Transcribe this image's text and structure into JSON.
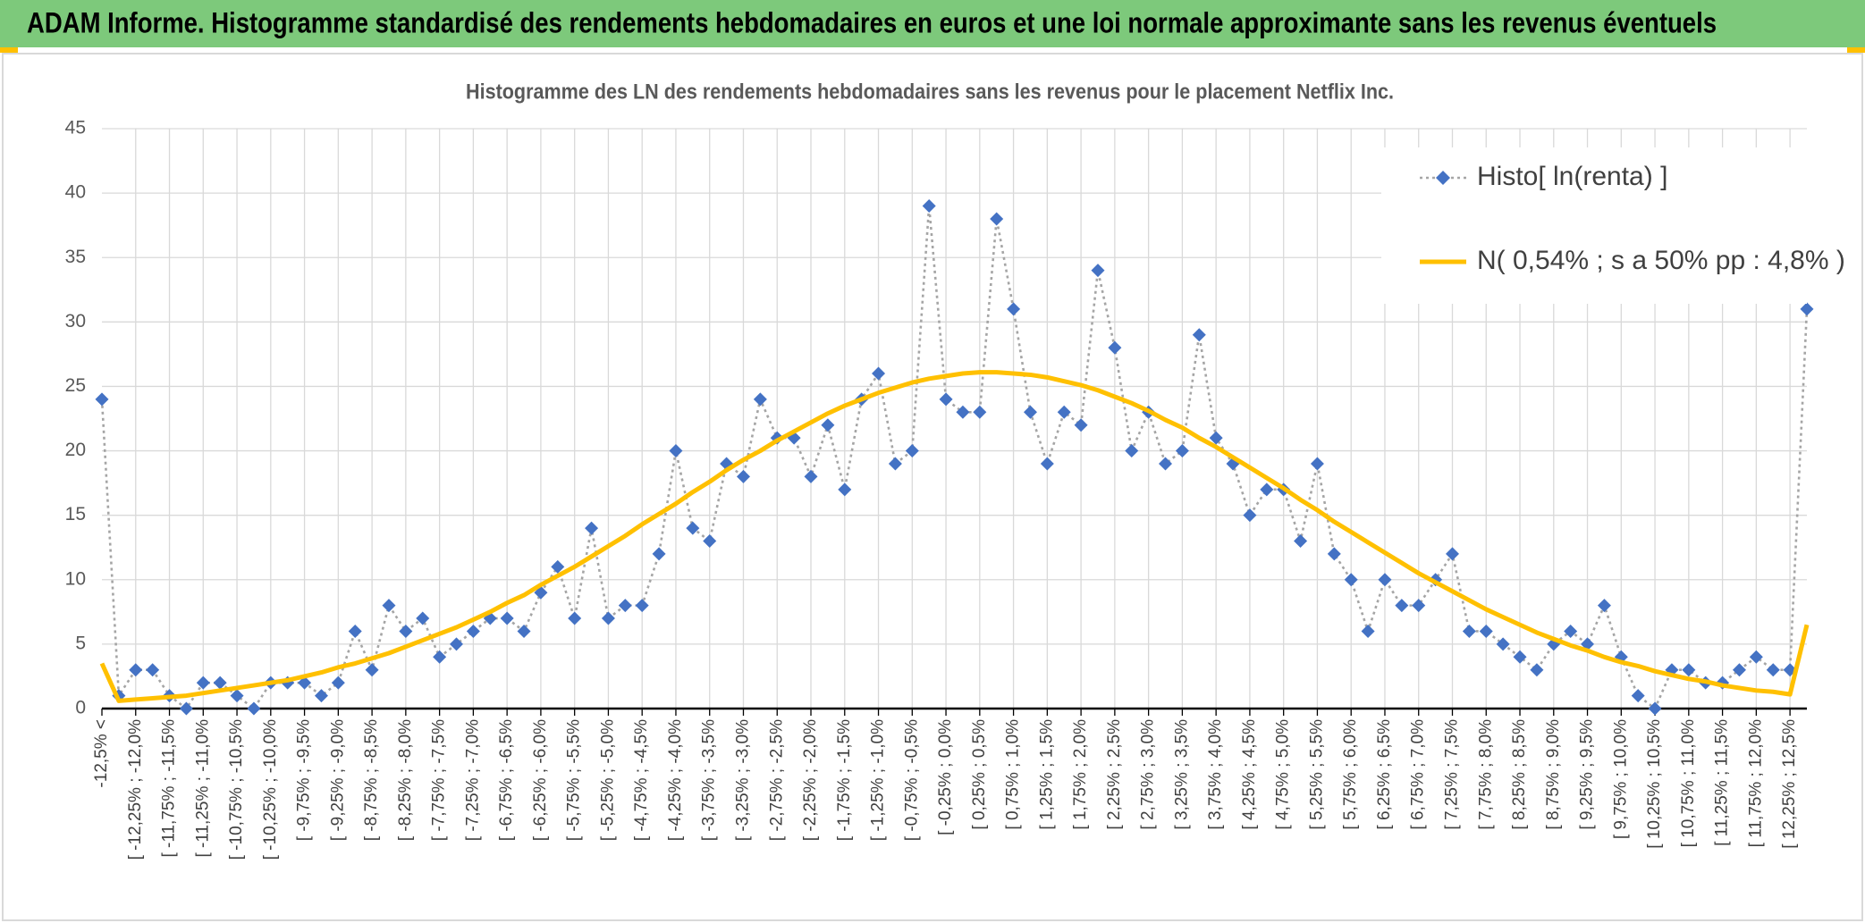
{
  "header": {
    "title": "ADAM Informe. Histogramme standardisé des rendements hebdomadaires en euros et une loi normale approximante sans les revenus éventuels"
  },
  "chart_data": {
    "type": "line",
    "title": "Histogramme des LN des rendements hebdomadaires sans les revenus pour le placement Netflix Inc.",
    "categories": [
      "-12,5% <",
      null,
      "[ -12,25% ; -12,0%",
      null,
      "[ -11,75% ; -11,5%",
      null,
      "[ -11,25% ; -11,0%",
      null,
      "[ -10,75% ; -10,5%",
      null,
      "[ -10,25% ; -10,0%",
      null,
      "[ -9,75% ; -9,5%",
      null,
      "[ -9,25% ; -9,0%",
      null,
      "[ -8,75% ; -8,5%",
      null,
      "[ -8,25% ; -8,0%",
      null,
      "[ -7,75% ; -7,5%",
      null,
      "[ -7,25% ; -7,0%",
      null,
      "[ -6,75% ; -6,5%",
      null,
      "[ -6,25% ; -6,0%",
      null,
      "[ -5,75% ; -5,5%",
      null,
      "[ -5,25% ; -5,0%",
      null,
      "[ -4,75% ; -4,5%",
      null,
      "[ -4,25% ; -4,0%",
      null,
      "[ -3,75% ; -3,5%",
      null,
      "[ -3,25% ; -3,0%",
      null,
      "[ -2,75% ; -2,5%",
      null,
      "[ -2,25% ; -2,0%",
      null,
      "[ -1,75% ; -1,5%",
      null,
      "[ -1,25% ; -1,0%",
      null,
      "[ -0,75% ; -0,5%",
      null,
      "[ -0,25% ; 0,0%",
      null,
      "[ 0,25% ; 0,5%",
      null,
      "[ 0,75% ; 1,0%",
      null,
      "[ 1,25% ; 1,5%",
      null,
      "[ 1,75% ; 2,0%",
      null,
      "[ 2,25% ; 2,5%",
      null,
      "[ 2,75% ; 3,0%",
      null,
      "[ 3,25% ; 3,5%",
      null,
      "[ 3,75% ; 4,0%",
      null,
      "[ 4,25% ; 4,5%",
      null,
      "[ 4,75% ; 5,0%",
      null,
      "[ 5,25% ; 5,5%",
      null,
      "[ 5,75% ; 6,0%",
      null,
      "[ 6,25% ; 6,5%",
      null,
      "[ 6,75% ; 7,0%",
      null,
      "[ 7,25% ; 7,5%",
      null,
      "[ 7,75% ; 8,0%",
      null,
      "[ 8,25% ; 8,5%",
      null,
      "[ 8,75% ; 9,0%",
      null,
      "[ 9,25% ; 9,5%",
      null,
      "[ 9,75% ; 10,0%",
      null,
      "[ 10,25% ; 10,5%",
      null,
      "[ 10,75% ; 11,0%",
      null,
      "[ 11,25% ; 11,5%",
      null,
      "[ 11,75% ; 12,0%",
      null,
      "[ 12,25% ; 12,5%",
      null
    ],
    "series": [
      {
        "name": "Histo[ ln(renta) ]",
        "color": "#4472c4",
        "line_color": "#a5a5a5",
        "marker": "diamond",
        "dashed": true,
        "values": [
          24,
          1,
          3,
          3,
          1,
          0,
          2,
          2,
          1,
          0,
          2,
          2,
          2,
          1,
          2,
          6,
          3,
          8,
          6,
          7,
          4,
          5,
          6,
          7,
          7,
          6,
          9,
          11,
          7,
          14,
          7,
          8,
          8,
          12,
          20,
          14,
          13,
          19,
          18,
          24,
          21,
          21,
          18,
          22,
          17,
          24,
          26,
          19,
          20,
          39,
          24,
          23,
          23,
          38,
          31,
          23,
          19,
          23,
          22,
          34,
          28,
          20,
          23,
          19,
          20,
          29,
          21,
          19,
          15,
          17,
          17,
          13,
          19,
          12,
          10,
          6,
          10,
          8,
          8,
          10,
          12,
          6,
          6,
          5,
          4,
          3,
          5,
          6,
          5,
          8,
          4,
          1,
          0,
          3,
          3,
          2,
          2,
          3,
          4,
          3,
          3,
          31
        ]
      },
      {
        "name": "N( 0,54% ; s a 50% pp : 4,8% )",
        "color": "#ffc000",
        "marker": null,
        "dashed": false,
        "values": [
          3.5,
          0.6,
          0.7,
          0.8,
          0.9,
          1.0,
          1.2,
          1.4,
          1.6,
          1.8,
          2.0,
          2.2,
          2.5,
          2.8,
          3.2,
          3.5,
          3.9,
          4.3,
          4.8,
          5.3,
          5.8,
          6.3,
          6.9,
          7.5,
          8.2,
          8.8,
          9.6,
          10.3,
          11.0,
          11.8,
          12.6,
          13.4,
          14.3,
          15.1,
          15.9,
          16.8,
          17.6,
          18.5,
          19.3,
          20.0,
          20.8,
          21.5,
          22.2,
          22.9,
          23.5,
          24.0,
          24.5,
          24.9,
          25.3,
          25.6,
          25.8,
          26.0,
          26.1,
          26.1,
          26.0,
          25.9,
          25.7,
          25.4,
          25.1,
          24.7,
          24.2,
          23.7,
          23.1,
          22.4,
          21.8,
          21.0,
          20.3,
          19.5,
          18.7,
          17.9,
          17.1,
          16.2,
          15.4,
          14.5,
          13.7,
          12.9,
          12.1,
          11.3,
          10.5,
          9.8,
          9.1,
          8.4,
          7.7,
          7.1,
          6.5,
          5.9,
          5.4,
          4.9,
          4.5,
          4.0,
          3.6,
          3.3,
          2.9,
          2.6,
          2.3,
          2.1,
          1.8,
          1.6,
          1.4,
          1.3,
          1.1,
          6.5
        ]
      }
    ],
    "ylim": [
      0,
      45
    ],
    "yticks": [
      0,
      5,
      10,
      15,
      20,
      25,
      30,
      35,
      40,
      45
    ],
    "grid": true,
    "legend": "upper right"
  }
}
